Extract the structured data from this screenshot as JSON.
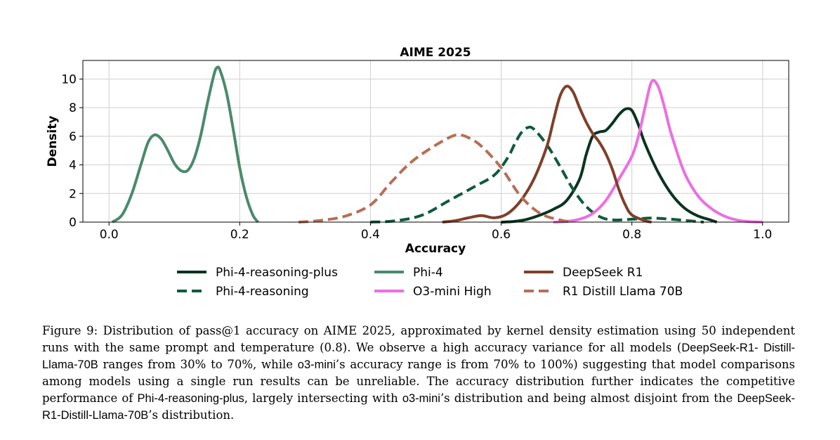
{
  "chart_data": {
    "type": "line",
    "title": "AIME 2025",
    "xlabel": "Accuracy",
    "ylabel": "Density",
    "xlim": [
      -0.04,
      1.04
    ],
    "ylim": [
      0,
      11.3
    ],
    "xticks": [
      0.0,
      0.2,
      0.4,
      0.6,
      0.8,
      1.0
    ],
    "xtick_labels": [
      "0.0",
      "0.2",
      "0.4",
      "0.6",
      "0.8",
      "1.0"
    ],
    "yticks": [
      0,
      2,
      4,
      6,
      8,
      10
    ],
    "ytick_labels": [
      "0",
      "2",
      "4",
      "6",
      "8",
      "10"
    ],
    "grid": true,
    "legend_position": "bottom-center",
    "series": [
      {
        "name": "Phi-4-reasoning-plus",
        "color": "#0b3320",
        "dashed": false,
        "points": [
          [
            0.6,
            0
          ],
          [
            0.62,
            0.05
          ],
          [
            0.64,
            0.2
          ],
          [
            0.66,
            0.5
          ],
          [
            0.68,
            0.9
          ],
          [
            0.7,
            1.5
          ],
          [
            0.72,
            3.0
          ],
          [
            0.73,
            4.7
          ],
          [
            0.74,
            6.0
          ],
          [
            0.75,
            6.3
          ],
          [
            0.76,
            6.4
          ],
          [
            0.77,
            6.9
          ],
          [
            0.78,
            7.5
          ],
          [
            0.79,
            7.9
          ],
          [
            0.8,
            7.8
          ],
          [
            0.81,
            6.8
          ],
          [
            0.82,
            5.5
          ],
          [
            0.84,
            3.5
          ],
          [
            0.86,
            2.0
          ],
          [
            0.88,
            1.0
          ],
          [
            0.9,
            0.45
          ],
          [
            0.92,
            0.15
          ],
          [
            0.93,
            0
          ]
        ]
      },
      {
        "name": "Phi-4-reasoning",
        "color": "#0f5a3c",
        "dashed": true,
        "points": [
          [
            0.4,
            0
          ],
          [
            0.44,
            0.1
          ],
          [
            0.48,
            0.5
          ],
          [
            0.52,
            1.5
          ],
          [
            0.56,
            2.5
          ],
          [
            0.59,
            3.3
          ],
          [
            0.61,
            4.5
          ],
          [
            0.62,
            5.4
          ],
          [
            0.63,
            6.2
          ],
          [
            0.64,
            6.6
          ],
          [
            0.65,
            6.5
          ],
          [
            0.67,
            5.4
          ],
          [
            0.69,
            3.9
          ],
          [
            0.71,
            2.3
          ],
          [
            0.73,
            1.1
          ],
          [
            0.75,
            0.4
          ],
          [
            0.77,
            0.15
          ],
          [
            0.8,
            0.2
          ],
          [
            0.83,
            0.28
          ],
          [
            0.86,
            0.2
          ],
          [
            0.89,
            0.08
          ],
          [
            0.91,
            0
          ]
        ]
      },
      {
        "name": "Phi-4",
        "color": "#4a8a6c",
        "dashed": false,
        "points": [
          [
            0.005,
            0
          ],
          [
            0.02,
            0.5
          ],
          [
            0.035,
            2.0
          ],
          [
            0.05,
            4.2
          ],
          [
            0.06,
            5.6
          ],
          [
            0.07,
            6.1
          ],
          [
            0.08,
            5.8
          ],
          [
            0.09,
            5.0
          ],
          [
            0.1,
            4.1
          ],
          [
            0.11,
            3.6
          ],
          [
            0.12,
            3.6
          ],
          [
            0.13,
            4.4
          ],
          [
            0.14,
            6.0
          ],
          [
            0.15,
            8.2
          ],
          [
            0.16,
            10.2
          ],
          [
            0.165,
            10.8
          ],
          [
            0.17,
            10.6
          ],
          [
            0.18,
            9.0
          ],
          [
            0.19,
            6.5
          ],
          [
            0.2,
            3.8
          ],
          [
            0.21,
            1.8
          ],
          [
            0.22,
            0.5
          ],
          [
            0.228,
            0
          ]
        ]
      },
      {
        "name": "O3-mini High",
        "color": "#ec6fe0",
        "dashed": false,
        "points": [
          [
            0.68,
            0
          ],
          [
            0.7,
            0.05
          ],
          [
            0.72,
            0.2
          ],
          [
            0.74,
            0.6
          ],
          [
            0.76,
            1.5
          ],
          [
            0.78,
            3.0
          ],
          [
            0.8,
            4.6
          ],
          [
            0.81,
            6.0
          ],
          [
            0.82,
            8.0
          ],
          [
            0.83,
            9.8
          ],
          [
            0.84,
            9.5
          ],
          [
            0.85,
            8.0
          ],
          [
            0.86,
            6.2
          ],
          [
            0.88,
            3.5
          ],
          [
            0.9,
            1.9
          ],
          [
            0.92,
            1.0
          ],
          [
            0.94,
            0.45
          ],
          [
            0.96,
            0.15
          ],
          [
            0.98,
            0.03
          ],
          [
            1.0,
            0
          ]
        ]
      },
      {
        "name": "DeepSeek R1",
        "color": "#7f3f2a",
        "dashed": false,
        "points": [
          [
            0.51,
            0
          ],
          [
            0.53,
            0.1
          ],
          [
            0.55,
            0.3
          ],
          [
            0.57,
            0.45
          ],
          [
            0.59,
            0.3
          ],
          [
            0.61,
            0.6
          ],
          [
            0.63,
            1.5
          ],
          [
            0.65,
            3.0
          ],
          [
            0.67,
            5.3
          ],
          [
            0.68,
            7.1
          ],
          [
            0.69,
            8.8
          ],
          [
            0.7,
            9.5
          ],
          [
            0.71,
            9.1
          ],
          [
            0.72,
            8.0
          ],
          [
            0.73,
            7.0
          ],
          [
            0.74,
            6.2
          ],
          [
            0.75,
            5.6
          ],
          [
            0.76,
            4.8
          ],
          [
            0.77,
            3.7
          ],
          [
            0.78,
            2.3
          ],
          [
            0.79,
            1.2
          ],
          [
            0.8,
            0.5
          ],
          [
            0.82,
            0.1
          ],
          [
            0.83,
            0
          ]
        ]
      },
      {
        "name": "R1 Distill Llama 70B",
        "color": "#b76e55",
        "dashed": true,
        "points": [
          [
            0.29,
            0
          ],
          [
            0.32,
            0.1
          ],
          [
            0.36,
            0.4
          ],
          [
            0.4,
            1.2
          ],
          [
            0.43,
            2.7
          ],
          [
            0.46,
            4.1
          ],
          [
            0.49,
            5.1
          ],
          [
            0.52,
            5.9
          ],
          [
            0.535,
            6.1
          ],
          [
            0.55,
            5.9
          ],
          [
            0.57,
            5.3
          ],
          [
            0.6,
            3.8
          ],
          [
            0.63,
            1.8
          ],
          [
            0.66,
            0.6
          ],
          [
            0.69,
            0.15
          ],
          [
            0.71,
            0
          ]
        ]
      }
    ]
  },
  "caption": {
    "lines": [
      [
        {
          "t": "Figure 9: Distribution of pass@1 accuracy on AIME 2025, approximated by kernel density estimation using 50 independent",
          "s": false
        }
      ],
      [
        {
          "t": "runs with the same prompt and temperature (0.8).  We observe a high accuracy variance for all models (",
          "s": false
        },
        {
          "t": "DeepSeek-R1-",
          "s": true
        }
      ],
      [
        {
          "t": "Distill-Llama-70B",
          "s": true
        },
        {
          "t": " ranges from 30% to 70%, while ",
          "s": false
        },
        {
          "t": "o3-mini",
          "s": true
        },
        {
          "t": "’s accuracy range is from 70% to 100%) suggesting that model",
          "s": false
        }
      ],
      [
        {
          "t": "comparisons among models using a single run results can be unreliable.  The accuracy distribution further indicates the",
          "s": false
        }
      ],
      [
        {
          "t": "competitive performance of ",
          "s": false
        },
        {
          "t": "Phi-4-reasoning-plus",
          "s": true
        },
        {
          "t": ", largely intersecting with ",
          "s": false
        },
        {
          "t": "o3-mini",
          "s": true
        },
        {
          "t": "’s distribution and being almost disjoint",
          "s": false
        }
      ],
      [
        {
          "t": "from the ",
          "s": false
        },
        {
          "t": "DeepSeek-R1-Distill-Llama-70B",
          "s": true
        },
        {
          "t": "’s distribution.",
          "s": false
        }
      ]
    ]
  }
}
